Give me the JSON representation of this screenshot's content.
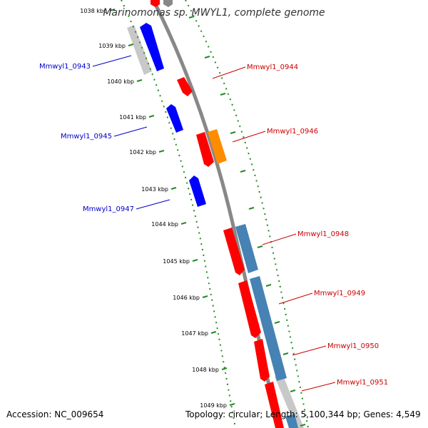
{
  "title": "Marinomonas sp. MWYL1, complete genome",
  "footer": {
    "accession": "Accession: NC_009654",
    "topology": "Topology: circular; Length: 5,100,344 bp; Genes: 4,549"
  },
  "ticks": [
    {
      "label": "1038 kbp"
    },
    {
      "label": "1039 kbp"
    },
    {
      "label": "1040 kbp"
    },
    {
      "label": "1041 kbp"
    },
    {
      "label": "1042 kbp"
    },
    {
      "label": "1043 kbp"
    },
    {
      "label": "1044 kbp"
    },
    {
      "label": "1045 kbp"
    },
    {
      "label": "1046 kbp"
    },
    {
      "label": "1047 kbp"
    },
    {
      "label": "1048 kbp"
    },
    {
      "label": "1049 kbp"
    }
  ],
  "genes": [
    {
      "id": "gene-top-1",
      "label": "",
      "strand": "forward",
      "color": "#ff0000"
    },
    {
      "id": "gene-top-2",
      "label": "",
      "strand": "forward",
      "color": "#888888"
    },
    {
      "id": "Mmwyl1_0943",
      "label": "Mmwyl1_0943",
      "strand": "reverse",
      "color": "#0000ff"
    },
    {
      "id": "Mmwyl1_0944",
      "label": "Mmwyl1_0944",
      "strand": "forward",
      "color": "#ff0000"
    },
    {
      "id": "Mmwyl1_0945",
      "label": "Mmwyl1_0945",
      "strand": "reverse",
      "color": "#0000ff"
    },
    {
      "id": "Mmwyl1_0946",
      "label": "Mmwyl1_0946",
      "strand": "forward",
      "color": "#ff0000"
    },
    {
      "id": "Mmwyl1_0947",
      "label": "Mmwyl1_0947",
      "strand": "reverse",
      "color": "#0000ff"
    },
    {
      "id": "Mmwyl1_0948",
      "label": "Mmwyl1_0948",
      "strand": "forward",
      "color": "#ff0000"
    },
    {
      "id": "Mmwyl1_0949",
      "label": "Mmwyl1_0949",
      "strand": "forward",
      "color": "#ff0000"
    },
    {
      "id": "Mmwyl1_0950",
      "label": "Mmwyl1_0950",
      "strand": "forward",
      "color": "#ff0000"
    },
    {
      "id": "Mmwyl1_0951",
      "label": "Mmwyl1_0951",
      "strand": "forward",
      "color": "#ff0000"
    }
  ],
  "colors": {
    "forward_label": "#cc0000",
    "reverse_label": "#0000cc",
    "backbone": "#888888",
    "tick": "#228b22",
    "orange": "#ff8c00",
    "steelblue": "#4682b4",
    "grey": "#c8c8c8"
  }
}
